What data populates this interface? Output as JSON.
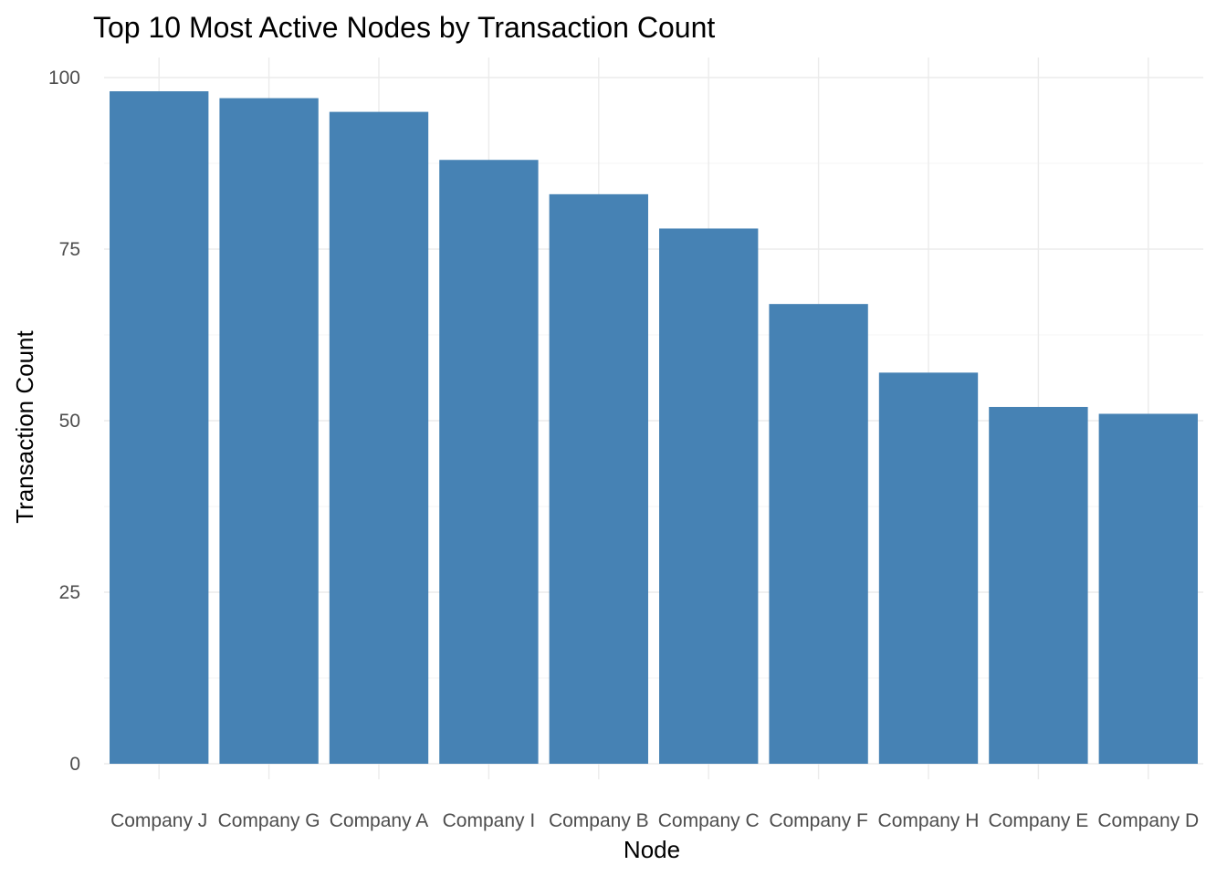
{
  "chart_data": {
    "type": "bar",
    "title": "Top 10 Most Active Nodes by Transaction Count",
    "xlabel": "Node",
    "ylabel": "Transaction Count",
    "categories": [
      "Company J",
      "Company G",
      "Company A",
      "Company I",
      "Company B",
      "Company C",
      "Company F",
      "Company H",
      "Company E",
      "Company D"
    ],
    "values": [
      98,
      97,
      95,
      88,
      83,
      78,
      67,
      57,
      52,
      51
    ],
    "ylim": [
      0,
      103
    ],
    "yticks": [
      0,
      25,
      50,
      75,
      100
    ],
    "grid": true,
    "bar_color": "#4682B4"
  }
}
